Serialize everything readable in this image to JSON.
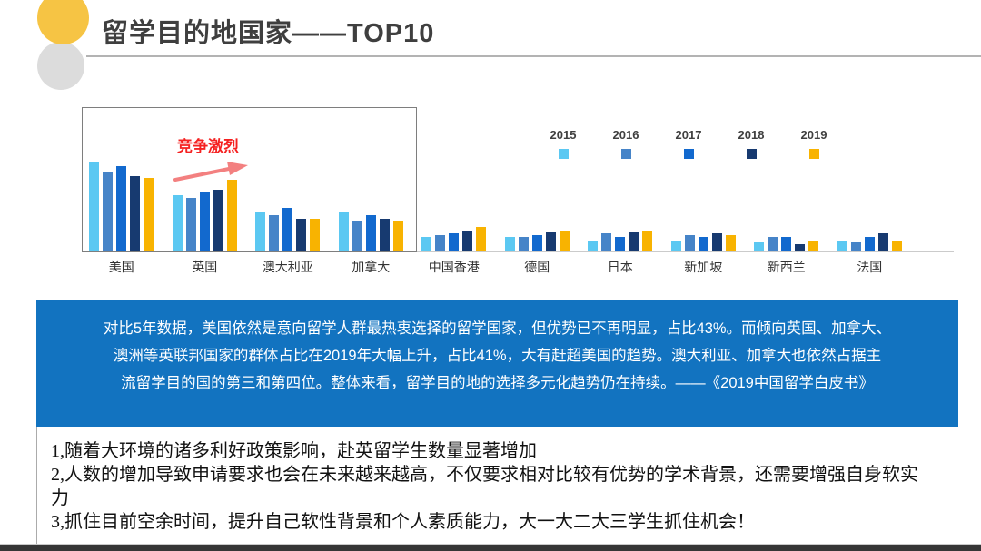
{
  "slide": {
    "title": "留学目的地国家——TOP10",
    "accent_colors": {
      "circle_yellow": "#F6C444",
      "circle_gray": "#DCDCDC",
      "divider_gray": "#B3B3B3",
      "title_text": "#3F3F3F",
      "summary_blue": "#1273C0",
      "annotation_red": "#F52222",
      "arrow_pink": "#F38080",
      "bottom_bar": "#363636"
    }
  },
  "chart_data": {
    "type": "bar",
    "title": "",
    "xlabel": "",
    "ylabel": "",
    "unit": "estimated share % (no value axis shown)",
    "ylim": [
      0,
      55
    ],
    "grid": false,
    "legend_position": "top-right",
    "categories": [
      "美国",
      "英国",
      "澳大利亚",
      "加拿大",
      "中国香港",
      "德国",
      "日本",
      "新加坡",
      "新西兰",
      "法国"
    ],
    "series": [
      {
        "name": "2015",
        "color": "#5BC8F2",
        "values": [
          52,
          33,
          23,
          23,
          8,
          8,
          6,
          6,
          5,
          6
        ]
      },
      {
        "name": "2016",
        "color": "#4684C8",
        "values": [
          47,
          31,
          21,
          17,
          9,
          8,
          10,
          9,
          8,
          5
        ]
      },
      {
        "name": "2017",
        "color": "#1269CE",
        "values": [
          50,
          35,
          25,
          21,
          10,
          9,
          8,
          8,
          8,
          8
        ]
      },
      {
        "name": "2018",
        "color": "#173A70",
        "values": [
          44,
          36,
          19,
          19,
          12,
          11,
          11,
          10,
          4,
          10
        ]
      },
      {
        "name": "2019",
        "color": "#F8B301",
        "values": [
          43,
          42,
          19,
          17,
          14,
          12,
          12,
          9,
          6,
          6
        ]
      }
    ],
    "annotation": {
      "text": "竞争激烈",
      "color": "#F52222",
      "arrow": "points up-right toward 英国 2019 bar"
    },
    "highlight_box_categories": [
      "美国",
      "英国",
      "澳大利亚",
      "加拿大"
    ]
  },
  "summary_box": {
    "bg": "#1273C0",
    "lines": [
      "对比5年数据，美国依然是意向留学人群最热衷选择的留学国家，但优势已不再明显，占比43%。而倾向英国、加拿大、",
      "澳洲等英联邦国家的群体占比在2019年大幅上升，占比41%，大有赶超美国的趋势。澳大利亚、加拿大也依然占据主",
      "流留学目的国的第三和第四位。整体来看，留学目的地的选择多元化趋势仍在持续。——《2019中国留学白皮书》"
    ]
  },
  "notes": {
    "items": [
      "1,随着大环境的诸多利好政策影响，赴英留学生数量显著增加",
      "2,人数的增加导致申请要求也会在未来越来越高，不仅要求相对比较有优势的学术背景，还需要增强自身软实力",
      "3,抓住目前空余时间，提升自己软性背景和个人素质能力，大一大二大三学生抓住机会！"
    ]
  }
}
